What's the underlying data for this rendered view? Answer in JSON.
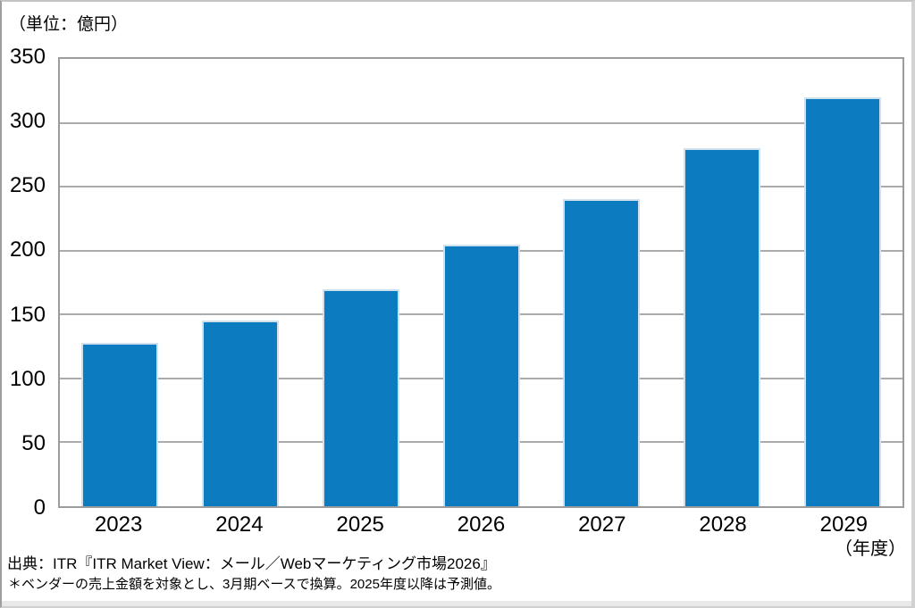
{
  "labels": {
    "unit": "（単位：億円）",
    "year_axis": "（年度）",
    "source": "出典：ITR『ITR Market View：メール／Webマーケティング市場2026』",
    "footnote": "＊ベンダーの売上金額を対象とし、3月期ベースで換算。2025年度以降は予測値。"
  },
  "chart_data": {
    "type": "bar",
    "categories": [
      "2023",
      "2024",
      "2025",
      "2026",
      "2027",
      "2028",
      "2029"
    ],
    "values": [
      128,
      145,
      170,
      205,
      240,
      280,
      320
    ],
    "title": "",
    "xlabel": "（年度）",
    "ylabel": "（単位：億円）",
    "ylim": [
      0,
      350
    ],
    "yticks": [
      0,
      50,
      100,
      150,
      200,
      250,
      300,
      350
    ],
    "grid": true,
    "legend": false,
    "bar_color": "#0c7bbf",
    "bar_edge_color": "#cfe0ee",
    "gridline_color": "#ababab",
    "plot_border_color": "#9c9c9c"
  }
}
